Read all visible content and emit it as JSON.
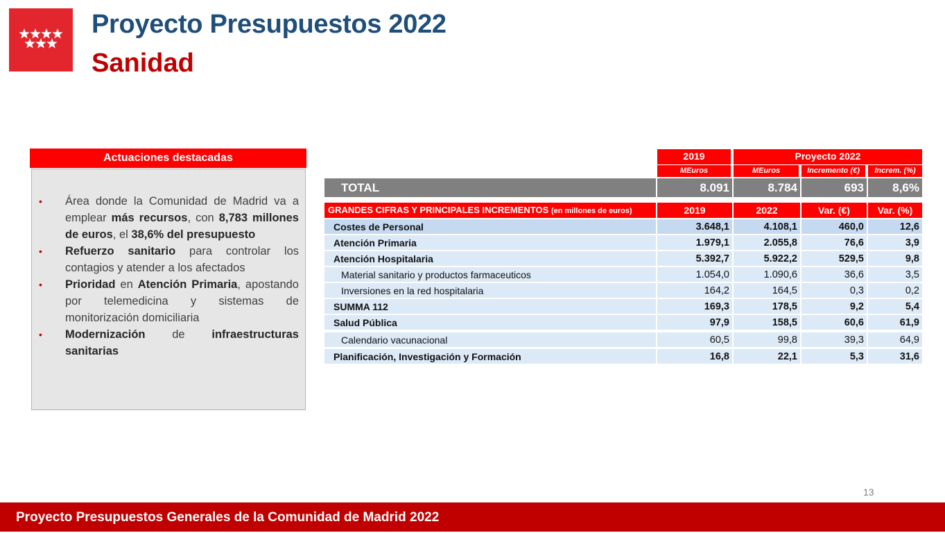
{
  "header": {
    "title": "Proyecto Presupuestos 2022",
    "subtitle": "Sanidad"
  },
  "logo": {
    "icon": "madrid-stars-logo",
    "color": "#e3262d"
  },
  "actions": {
    "title": "Actuaciones destacadas",
    "bullet": "•",
    "items": [
      {
        "parts": [
          {
            "t": "Área donde la Comunidad de Madrid va a emplear ",
            "b": false
          },
          {
            "t": "más recursos",
            "b": true
          },
          {
            "t": ", con ",
            "b": false
          },
          {
            "t": "8,783 millones de euros",
            "b": true
          },
          {
            "t": ", el ",
            "b": false
          },
          {
            "t": "38,6% del presupuesto",
            "b": true
          }
        ]
      },
      {
        "parts": [
          {
            "t": "Refuerzo sanitario",
            "b": true
          },
          {
            "t": " para controlar los contagios y atender a los afectados",
            "b": false
          }
        ]
      },
      {
        "parts": [
          {
            "t": "Prioridad",
            "b": true
          },
          {
            "t": " en ",
            "b": false
          },
          {
            "t": "Atención Primaria",
            "b": true
          },
          {
            "t": ", apostando por telemedicina y sistemas de monitorización domiciliaria",
            "b": false
          }
        ]
      },
      {
        "parts": [
          {
            "t": "Modernización",
            "b": true
          },
          {
            "t": " de ",
            "b": false
          },
          {
            "t": "infraestructuras sanitarias",
            "b": true
          }
        ]
      }
    ]
  },
  "table": {
    "col_2019": "2019",
    "col_proyecto": "Proyecto 2022",
    "sub_meuros_2019": "MEuros",
    "sub_meuros_2022": "MEuros",
    "sub_incremento": "Incremento (€)",
    "sub_increm_pct": "Increm. (%)",
    "total": {
      "label": "TOTAL",
      "v2019": "8.091",
      "v2022": "8.784",
      "var": "693",
      "pct": "8,6%"
    },
    "section_title": "GRANDES CIFRAS Y PRINCIPALES INCREMENTOS",
    "section_note": "(en millones de euros)",
    "section_cols": [
      "2019",
      "2022",
      "Var. (€)",
      "Var. (%)"
    ],
    "rows": [
      {
        "label": "Costes de Personal",
        "v2019": "3.648,1",
        "v2022": "4.108,1",
        "var": "460,0",
        "pct": "12,6",
        "bold": true,
        "sub": false
      },
      {
        "label": "Atención Primaria",
        "v2019": "1.979,1",
        "v2022": "2.055,8",
        "var": "76,6",
        "pct": "3,9",
        "bold": true,
        "sub": false
      },
      {
        "label": "Atención Hospitalaria",
        "v2019": "5.392,7",
        "v2022": "5.922,2",
        "var": "529,5",
        "pct": "9,8",
        "bold": true,
        "sub": false
      },
      {
        "label": "Material sanitario y productos farmaceuticos",
        "v2019": "1.054,0",
        "v2022": "1.090,6",
        "var": "36,6",
        "pct": "3,5",
        "bold": false,
        "sub": true
      },
      {
        "label": "Inversiones en la red hospitalaria",
        "v2019": "164,2",
        "v2022": "164,5",
        "var": "0,3",
        "pct": "0,2",
        "bold": false,
        "sub": true
      },
      {
        "label": "SUMMA 112",
        "v2019": "169,3",
        "v2022": "178,5",
        "var": "9,2",
        "pct": "5,4",
        "bold": true,
        "sub": false
      },
      {
        "label": "Salud Pública",
        "v2019": "97,9",
        "v2022": "158,5",
        "var": "60,6",
        "pct": "61,9",
        "bold": true,
        "sub": false
      },
      {
        "label": "Calendario vacunacional",
        "v2019": "60,5",
        "v2022": "99,8",
        "var": "39,3",
        "pct": "64,9",
        "bold": false,
        "sub": true
      },
      {
        "label": "Planificación, Investigación y Formación",
        "v2019": "16,8",
        "v2022": "22,1",
        "var": "5,3",
        "pct": "31,6",
        "bold": true,
        "sub": false
      }
    ]
  },
  "page_number": "13",
  "footer": {
    "text": "Proyecto Presupuestos Generales de la Comunidad de Madrid 2022"
  }
}
